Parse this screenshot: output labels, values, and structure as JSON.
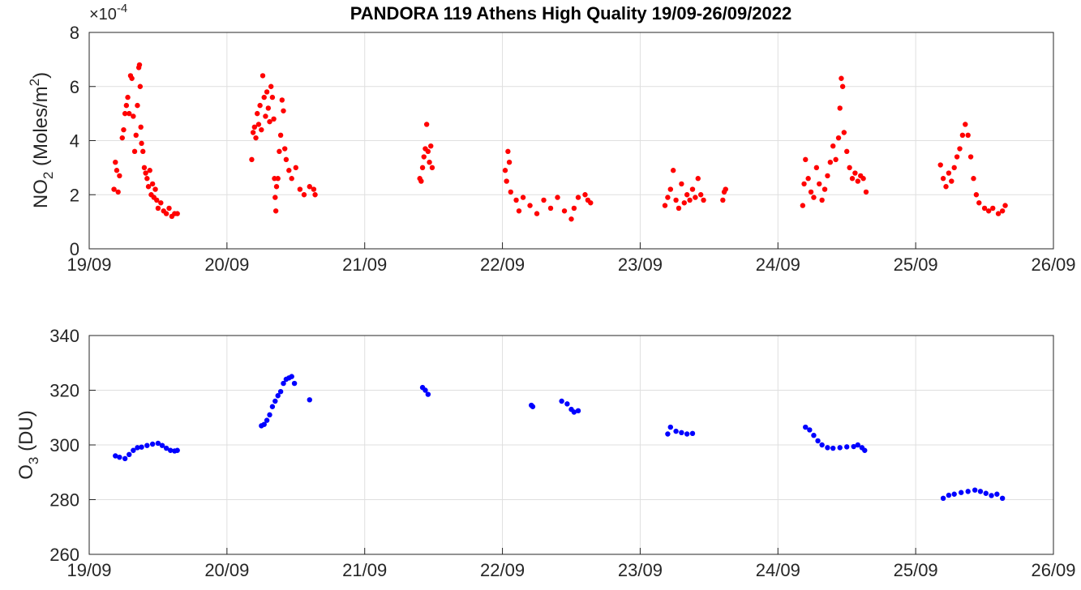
{
  "chart_data": [
    {
      "type": "scatter",
      "title": "PANDORA 119 Athens High Quality 19/09-26/09/2022",
      "ylabel": "NO2 (Moles/m2)",
      "ylabel_main": "NO",
      "ylabel_sub": "2",
      "ylabel_rest": " (Moles/m",
      "ylabel_sup": "2",
      "ylabel_end": ")",
      "exponent_label": "×10",
      "exponent_value": "-4",
      "ylim": [
        0,
        8
      ],
      "yticks": [
        "0",
        "2",
        "4",
        "6",
        "8"
      ],
      "xlim": [
        0,
        7
      ],
      "xticks": [
        "19/09",
        "20/09",
        "21/09",
        "22/09",
        "23/09",
        "24/09",
        "25/09",
        "26/09"
      ],
      "x_units": "days since 19/09/2022 00:00",
      "y_scale": "×1e-4",
      "grid": true,
      "color": "#ff0000",
      "points": [
        [
          0.18,
          2.2
        ],
        [
          0.19,
          3.2
        ],
        [
          0.2,
          2.9
        ],
        [
          0.21,
          2.1
        ],
        [
          0.22,
          2.7
        ],
        [
          0.24,
          4.1
        ],
        [
          0.25,
          4.4
        ],
        [
          0.26,
          5.0
        ],
        [
          0.27,
          5.3
        ],
        [
          0.28,
          5.6
        ],
        [
          0.29,
          5.0
        ],
        [
          0.3,
          6.4
        ],
        [
          0.31,
          6.3
        ],
        [
          0.32,
          4.9
        ],
        [
          0.33,
          3.6
        ],
        [
          0.34,
          4.2
        ],
        [
          0.35,
          5.3
        ],
        [
          0.36,
          6.7
        ],
        [
          0.365,
          6.8
        ],
        [
          0.37,
          6.0
        ],
        [
          0.375,
          4.5
        ],
        [
          0.38,
          3.9
        ],
        [
          0.39,
          3.6
        ],
        [
          0.4,
          3.0
        ],
        [
          0.41,
          2.8
        ],
        [
          0.42,
          2.6
        ],
        [
          0.43,
          2.3
        ],
        [
          0.44,
          2.9
        ],
        [
          0.45,
          2.0
        ],
        [
          0.46,
          2.4
        ],
        [
          0.47,
          1.9
        ],
        [
          0.48,
          2.2
        ],
        [
          0.49,
          1.8
        ],
        [
          0.5,
          1.5
        ],
        [
          0.52,
          1.7
        ],
        [
          0.54,
          1.4
        ],
        [
          0.56,
          1.3
        ],
        [
          0.58,
          1.5
        ],
        [
          0.6,
          1.2
        ],
        [
          0.62,
          1.3
        ],
        [
          0.64,
          1.3
        ],
        [
          1.18,
          3.3
        ],
        [
          1.19,
          4.3
        ],
        [
          1.2,
          4.5
        ],
        [
          1.21,
          4.1
        ],
        [
          1.22,
          5.0
        ],
        [
          1.23,
          4.6
        ],
        [
          1.24,
          5.3
        ],
        [
          1.25,
          4.4
        ],
        [
          1.26,
          6.4
        ],
        [
          1.27,
          5.6
        ],
        [
          1.28,
          4.9
        ],
        [
          1.29,
          5.8
        ],
        [
          1.3,
          5.2
        ],
        [
          1.31,
          4.7
        ],
        [
          1.32,
          6.0
        ],
        [
          1.33,
          5.6
        ],
        [
          1.34,
          4.8
        ],
        [
          1.345,
          2.6
        ],
        [
          1.35,
          1.9
        ],
        [
          1.355,
          1.4
        ],
        [
          1.36,
          2.3
        ],
        [
          1.37,
          2.6
        ],
        [
          1.38,
          3.6
        ],
        [
          1.39,
          4.2
        ],
        [
          1.4,
          5.5
        ],
        [
          1.41,
          5.1
        ],
        [
          1.42,
          3.7
        ],
        [
          1.43,
          3.3
        ],
        [
          1.45,
          2.9
        ],
        [
          1.47,
          2.6
        ],
        [
          1.5,
          3.0
        ],
        [
          1.53,
          2.2
        ],
        [
          1.56,
          2.0
        ],
        [
          1.6,
          2.3
        ],
        [
          1.63,
          2.2
        ],
        [
          1.64,
          2.0
        ],
        [
          2.4,
          2.6
        ],
        [
          2.41,
          2.5
        ],
        [
          2.42,
          3.0
        ],
        [
          2.43,
          3.4
        ],
        [
          2.44,
          3.7
        ],
        [
          2.45,
          4.6
        ],
        [
          2.46,
          3.6
        ],
        [
          2.47,
          3.2
        ],
        [
          2.48,
          3.8
        ],
        [
          2.49,
          3.0
        ],
        [
          3.02,
          2.9
        ],
        [
          3.03,
          2.5
        ],
        [
          3.04,
          3.6
        ],
        [
          3.05,
          3.2
        ],
        [
          3.06,
          2.1
        ],
        [
          3.1,
          1.8
        ],
        [
          3.12,
          1.4
        ],
        [
          3.15,
          1.9
        ],
        [
          3.2,
          1.6
        ],
        [
          3.25,
          1.3
        ],
        [
          3.3,
          1.8
        ],
        [
          3.35,
          1.5
        ],
        [
          3.4,
          1.9
        ],
        [
          3.45,
          1.4
        ],
        [
          3.5,
          1.1
        ],
        [
          3.52,
          1.5
        ],
        [
          3.55,
          1.9
        ],
        [
          3.6,
          2.0
        ],
        [
          3.62,
          1.8
        ],
        [
          3.64,
          1.7
        ],
        [
          4.18,
          1.6
        ],
        [
          4.2,
          1.9
        ],
        [
          4.22,
          2.2
        ],
        [
          4.24,
          2.9
        ],
        [
          4.26,
          1.8
        ],
        [
          4.28,
          1.5
        ],
        [
          4.3,
          2.4
        ],
        [
          4.32,
          1.7
        ],
        [
          4.34,
          2.0
        ],
        [
          4.36,
          1.8
        ],
        [
          4.38,
          2.2
        ],
        [
          4.4,
          1.9
        ],
        [
          4.42,
          2.6
        ],
        [
          4.44,
          2.0
        ],
        [
          4.46,
          1.8
        ],
        [
          4.6,
          1.8
        ],
        [
          4.61,
          2.1
        ],
        [
          4.62,
          2.2
        ],
        [
          5.18,
          1.6
        ],
        [
          5.19,
          2.4
        ],
        [
          5.2,
          3.3
        ],
        [
          5.22,
          2.6
        ],
        [
          5.24,
          2.1
        ],
        [
          5.26,
          1.9
        ],
        [
          5.28,
          3.0
        ],
        [
          5.3,
          2.4
        ],
        [
          5.32,
          1.8
        ],
        [
          5.34,
          2.2
        ],
        [
          5.36,
          2.7
        ],
        [
          5.38,
          3.2
        ],
        [
          5.4,
          3.8
        ],
        [
          5.42,
          3.3
        ],
        [
          5.44,
          4.1
        ],
        [
          5.45,
          5.2
        ],
        [
          5.46,
          6.3
        ],
        [
          5.47,
          6.0
        ],
        [
          5.48,
          4.3
        ],
        [
          5.5,
          3.6
        ],
        [
          5.52,
          3.0
        ],
        [
          5.54,
          2.6
        ],
        [
          5.56,
          2.8
        ],
        [
          5.58,
          2.5
        ],
        [
          5.6,
          2.7
        ],
        [
          5.62,
          2.6
        ],
        [
          5.64,
          2.1
        ],
        [
          6.18,
          3.1
        ],
        [
          6.2,
          2.6
        ],
        [
          6.22,
          2.3
        ],
        [
          6.24,
          2.8
        ],
        [
          6.26,
          2.5
        ],
        [
          6.28,
          3.0
        ],
        [
          6.3,
          3.4
        ],
        [
          6.32,
          3.7
        ],
        [
          6.34,
          4.2
        ],
        [
          6.36,
          4.6
        ],
        [
          6.38,
          4.2
        ],
        [
          6.4,
          3.4
        ],
        [
          6.42,
          2.6
        ],
        [
          6.44,
          2.0
        ],
        [
          6.46,
          1.7
        ],
        [
          6.5,
          1.5
        ],
        [
          6.53,
          1.4
        ],
        [
          6.56,
          1.5
        ],
        [
          6.6,
          1.3
        ],
        [
          6.63,
          1.4
        ],
        [
          6.65,
          1.6
        ]
      ]
    },
    {
      "type": "scatter",
      "ylabel": "O3 (DU)",
      "ylabel_main": "O",
      "ylabel_sub": "3",
      "ylabel_rest": " (DU)",
      "ylim": [
        260,
        340
      ],
      "yticks": [
        "260",
        "280",
        "300",
        "320",
        "340"
      ],
      "xlim": [
        0,
        7
      ],
      "xticks": [
        "19/09",
        "20/09",
        "21/09",
        "22/09",
        "23/09",
        "24/09",
        "25/09",
        "26/09"
      ],
      "grid": true,
      "color": "#0000ff",
      "points": [
        [
          0.19,
          296
        ],
        [
          0.22,
          295.5
        ],
        [
          0.26,
          295
        ],
        [
          0.29,
          296.5
        ],
        [
          0.32,
          298
        ],
        [
          0.35,
          299
        ],
        [
          0.38,
          299.2
        ],
        [
          0.42,
          299.8
        ],
        [
          0.46,
          300.3
        ],
        [
          0.5,
          300.6
        ],
        [
          0.53,
          299.8
        ],
        [
          0.56,
          298.8
        ],
        [
          0.59,
          298
        ],
        [
          0.62,
          297.8
        ],
        [
          0.64,
          298
        ],
        [
          1.25,
          307
        ],
        [
          1.27,
          307.5
        ],
        [
          1.29,
          309
        ],
        [
          1.31,
          311
        ],
        [
          1.33,
          314
        ],
        [
          1.35,
          316
        ],
        [
          1.37,
          318
        ],
        [
          1.39,
          319.5
        ],
        [
          1.41,
          322.5
        ],
        [
          1.43,
          324
        ],
        [
          1.45,
          324.5
        ],
        [
          1.47,
          325
        ],
        [
          1.49,
          322.5
        ],
        [
          1.6,
          316.5
        ],
        [
          2.42,
          321
        ],
        [
          2.44,
          320
        ],
        [
          2.46,
          318.5
        ],
        [
          3.21,
          314.5
        ],
        [
          3.22,
          314
        ],
        [
          3.43,
          316
        ],
        [
          3.47,
          315
        ],
        [
          3.5,
          313
        ],
        [
          3.52,
          312
        ],
        [
          3.55,
          312.5
        ],
        [
          4.2,
          304
        ],
        [
          4.22,
          306.5
        ],
        [
          4.26,
          305
        ],
        [
          4.3,
          304.5
        ],
        [
          4.34,
          304
        ],
        [
          4.38,
          304.2
        ],
        [
          5.2,
          306.5
        ],
        [
          5.23,
          305.5
        ],
        [
          5.26,
          303.5
        ],
        [
          5.29,
          301.5
        ],
        [
          5.32,
          300
        ],
        [
          5.36,
          299
        ],
        [
          5.4,
          298.8
        ],
        [
          5.45,
          299
        ],
        [
          5.5,
          299.3
        ],
        [
          5.55,
          299.4
        ],
        [
          5.58,
          300
        ],
        [
          5.61,
          299
        ],
        [
          5.63,
          298
        ],
        [
          6.2,
          280.5
        ],
        [
          6.24,
          281.6
        ],
        [
          6.28,
          282
        ],
        [
          6.33,
          282.6
        ],
        [
          6.38,
          283
        ],
        [
          6.43,
          283.5
        ],
        [
          6.47,
          283
        ],
        [
          6.51,
          282.3
        ],
        [
          6.55,
          281.5
        ],
        [
          6.59,
          282
        ],
        [
          6.63,
          280.5
        ]
      ]
    }
  ]
}
